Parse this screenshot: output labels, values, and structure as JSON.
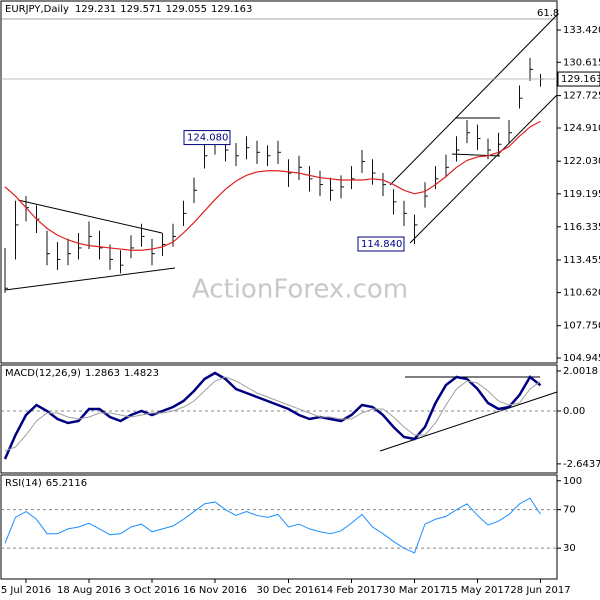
{
  "chart_data": [
    {
      "type": "ohlc",
      "title": "EURJPY,Daily",
      "quote": [
        129.231,
        129.571,
        129.055,
        129.163
      ],
      "watermark": "ActionForex.com",
      "fib_label": "61.8",
      "annotations": [
        {
          "value": 124.08,
          "label": "124.080"
        },
        {
          "value": 114.84,
          "label": "114.840"
        }
      ],
      "ylim": [
        104.51,
        135.85
      ],
      "yticks": [
        {
          "value": 133.42,
          "label": "133.420"
        },
        130.615,
        127.725,
        {
          "value": 124.91,
          "label": "124.910"
        },
        {
          "value": 122.03,
          "label": "122.030"
        },
        119.195,
        116.335,
        113.455,
        {
          "value": 110.62,
          "label": "110.620"
        },
        {
          "value": 107.75,
          "label": "107.750"
        },
        104.945
      ],
      "color": "#111111",
      "high": [
        114.5,
        118.6,
        119.0,
        118.2,
        116.0,
        115.0,
        115.3,
        115.8,
        116.8,
        116.0,
        114.8,
        114.3,
        115.6,
        116.6,
        115.3,
        115.8,
        116.6,
        118.6,
        120.6,
        123.8,
        124.6,
        124.0,
        123.6,
        124.2,
        123.8,
        123.4,
        123.8,
        122.2,
        122.5,
        121.6,
        121.2,
        120.6,
        120.8,
        121.6,
        123.0,
        122.2,
        121.0,
        119.6,
        118.6,
        117.4,
        120.2,
        121.6,
        122.6,
        124.2,
        125.6,
        125.2,
        124.0,
        124.5,
        125.6,
        128.6,
        131.0,
        129.6
      ],
      "low": [
        110.6,
        113.5,
        116.8,
        115.8,
        113.0,
        112.6,
        113.0,
        113.5,
        114.4,
        113.5,
        112.6,
        112.3,
        113.6,
        114.6,
        113.0,
        113.8,
        114.6,
        116.4,
        118.4,
        121.4,
        122.6,
        122.0,
        121.6,
        122.2,
        121.8,
        121.6,
        121.8,
        119.8,
        120.4,
        119.4,
        119.0,
        118.6,
        118.8,
        119.6,
        121.0,
        120.0,
        119.0,
        117.4,
        116.4,
        114.84,
        118.0,
        119.6,
        120.6,
        122.0,
        123.6,
        123.0,
        122.2,
        122.5,
        123.6,
        126.6,
        129.0,
        128.5
      ],
      "close": [
        111.0,
        116.5,
        118.0,
        117.0,
        114.0,
        113.5,
        114.0,
        114.5,
        115.5,
        114.5,
        113.5,
        113.0,
        114.5,
        115.5,
        114.0,
        114.8,
        115.5,
        117.5,
        119.5,
        122.5,
        123.5,
        123.0,
        122.5,
        123.2,
        122.8,
        122.5,
        122.8,
        121.0,
        121.5,
        120.5,
        120.0,
        119.5,
        119.8,
        120.5,
        122.0,
        121.0,
        120.0,
        118.5,
        117.5,
        116.5,
        119.0,
        120.5,
        121.5,
        123.0,
        124.5,
        124.0,
        123.0,
        123.5,
        124.5,
        127.5,
        130.0,
        129.163
      ],
      "ma": {
        "color": "#e02020",
        "values": [
          119.8,
          119.0,
          118.0,
          117.0,
          116.2,
          115.6,
          115.2,
          114.9,
          114.7,
          114.6,
          114.5,
          114.4,
          114.3,
          114.3,
          114.4,
          114.6,
          115.0,
          115.8,
          116.7,
          117.7,
          118.7,
          119.6,
          120.3,
          120.8,
          121.1,
          121.2,
          121.2,
          121.1,
          121.0,
          120.8,
          120.6,
          120.5,
          120.4,
          120.4,
          120.4,
          120.5,
          120.4,
          120.0,
          119.5,
          119.2,
          119.4,
          120.0,
          120.7,
          121.5,
          122.1,
          122.4,
          122.5,
          122.8,
          123.3,
          124.2,
          125.0,
          125.5
        ]
      }
    },
    {
      "type": "line",
      "title": "MACD(12,26,9)",
      "quote": [
        1.2863,
        1.4823
      ],
      "ylim": [
        -3.1,
        2.3
      ],
      "yticks": [
        2.0018,
        {
          "value": 0,
          "label": "0.00"
        },
        -2.6437
      ],
      "series": [
        {
          "name": "MACD",
          "color": "#000080",
          "width": 2.5,
          "values": [
            -2.4,
            -1.2,
            -0.2,
            0.3,
            0.0,
            -0.4,
            -0.6,
            -0.5,
            0.1,
            0.1,
            -0.3,
            -0.5,
            -0.2,
            0.0,
            -0.2,
            0.0,
            0.2,
            0.5,
            1.0,
            1.6,
            1.9,
            1.6,
            1.1,
            0.9,
            0.7,
            0.5,
            0.3,
            0.1,
            -0.2,
            -0.4,
            -0.3,
            -0.4,
            -0.5,
            -0.2,
            0.3,
            0.2,
            -0.2,
            -0.8,
            -1.3,
            -1.4,
            -0.8,
            0.4,
            1.3,
            1.7,
            1.6,
            1.1,
            0.4,
            0.1,
            0.2,
            0.8,
            1.7,
            1.2863
          ]
        },
        {
          "name": "Signal",
          "color": "#a0a0a0",
          "width": 1,
          "values": [
            -2.0,
            -1.8,
            -1.2,
            -0.5,
            -0.1,
            -0.1,
            -0.3,
            -0.4,
            -0.3,
            -0.1,
            -0.1,
            -0.2,
            -0.3,
            -0.2,
            -0.1,
            -0.1,
            0.0,
            0.2,
            0.5,
            1.0,
            1.5,
            1.7,
            1.5,
            1.2,
            0.9,
            0.7,
            0.5,
            0.3,
            0.1,
            -0.1,
            -0.3,
            -0.3,
            -0.4,
            -0.4,
            -0.1,
            0.1,
            0.1,
            -0.3,
            -0.8,
            -1.2,
            -1.2,
            -0.6,
            0.3,
            1.1,
            1.5,
            1.4,
            1.0,
            0.5,
            0.3,
            0.4,
            1.1,
            1.4823
          ]
        }
      ]
    },
    {
      "type": "line",
      "title": "RSI(14)",
      "quote": [
        65.2116
      ],
      "ylim": [
        -1,
        106
      ],
      "yticks": [
        100,
        70,
        30
      ],
      "categories": [
        null,
        null,
        "5 Jul 2016",
        null,
        null,
        null,
        null,
        null,
        "18 Aug 2016",
        null,
        null,
        null,
        null,
        null,
        "3 Oct 2016",
        null,
        null,
        null,
        null,
        null,
        "16 Nov 2016",
        null,
        null,
        null,
        null,
        null,
        null,
        "30 Dec 2016",
        null,
        null,
        null,
        null,
        null,
        "14 Feb 2017",
        null,
        null,
        null,
        null,
        null,
        "30 Mar 2017",
        null,
        null,
        null,
        null,
        null,
        "15 May 2017",
        null,
        null,
        null,
        null,
        null,
        "28 Jun 2017"
      ],
      "series": [
        {
          "name": "RSI",
          "color": "#1e90ff",
          "width": 1,
          "values": [
            35,
            62,
            68,
            60,
            45,
            45,
            50,
            52,
            56,
            50,
            44,
            45,
            52,
            55,
            47,
            50,
            53,
            60,
            68,
            76,
            78,
            70,
            64,
            68,
            64,
            62,
            65,
            52,
            55,
            50,
            47,
            45,
            48,
            56,
            65,
            52,
            45,
            37,
            30,
            25,
            55,
            60,
            63,
            70,
            76,
            64,
            54,
            58,
            65,
            76,
            82,
            65.2116
          ]
        }
      ]
    }
  ]
}
